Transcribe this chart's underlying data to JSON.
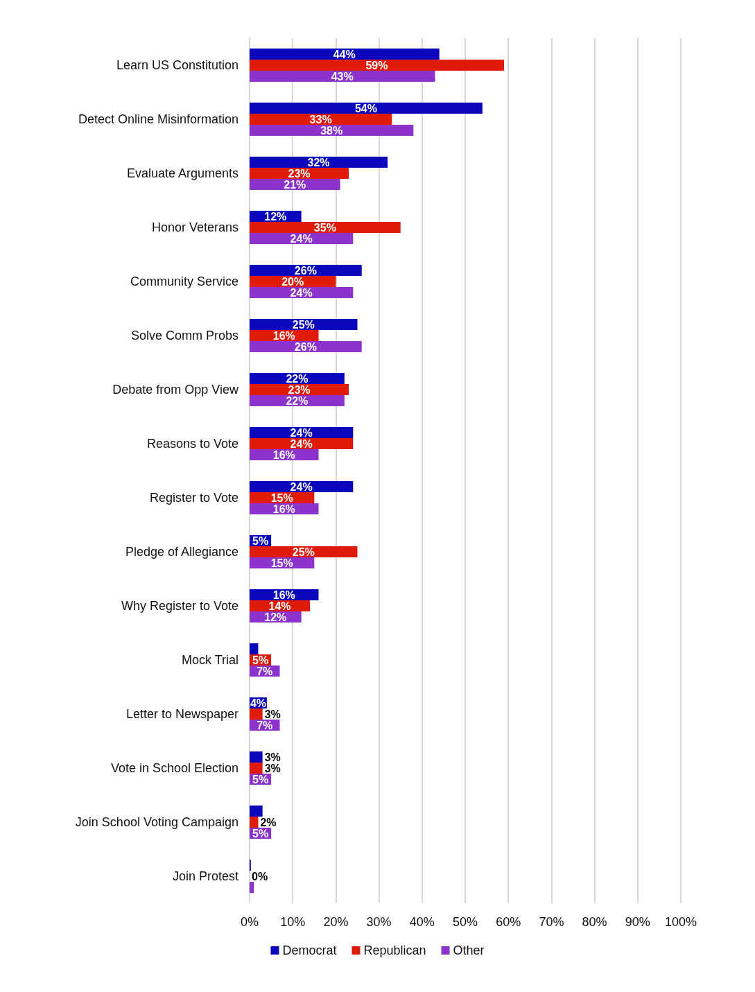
{
  "chart_data": {
    "type": "bar",
    "orientation": "horizontal",
    "categories": [
      "Learn US Constitution",
      "Detect Online Misinformation",
      "Evaluate Arguments",
      "Honor Veterans",
      "Community Service",
      "Solve Comm Probs",
      "Debate from Opp View",
      "Reasons to Vote",
      "Register to Vote",
      "Pledge of Allegiance",
      "Why Register to Vote",
      "Mock Trial",
      "Letter to Newspaper",
      "Vote in School Election",
      "Join School Voting Campaign",
      "Join Protest"
    ],
    "series": [
      {
        "name": "Democrat",
        "color": "#0c06bd",
        "values": [
          44,
          54,
          32,
          12,
          26,
          25,
          22,
          24,
          24,
          5,
          16,
          2,
          4,
          3,
          3,
          0.3
        ],
        "value_labels": [
          "44%",
          "54%",
          "32%",
          "12%",
          "26%",
          "25%",
          "22%",
          "24%",
          "24%",
          "5%",
          "16%",
          null,
          "4%",
          "3%",
          null,
          null
        ]
      },
      {
        "name": "Republican",
        "color": "#e01b0a",
        "values": [
          59,
          33,
          23,
          35,
          20,
          16,
          23,
          24,
          15,
          25,
          14,
          5,
          3,
          3,
          2,
          0
        ],
        "value_labels": [
          "59%",
          "33%",
          "23%",
          "35%",
          "20%",
          "16%",
          "23%",
          "24%",
          "15%",
          "25%",
          "14%",
          "5%",
          "3%",
          "3%",
          "2%",
          "0%"
        ]
      },
      {
        "name": "Other",
        "color": "#8b33cc",
        "values": [
          43,
          38,
          21,
          24,
          24,
          26,
          22,
          16,
          16,
          15,
          12,
          7,
          7,
          5,
          5,
          1
        ],
        "value_labels": [
          "43%",
          "38%",
          "21%",
          "24%",
          "24%",
          "26%",
          "22%",
          "16%",
          "16%",
          "15%",
          "12%",
          "7%",
          "7%",
          "5%",
          "5%",
          null
        ]
      }
    ],
    "xlim": [
      0,
      100
    ],
    "xticks": [
      {
        "value": 0,
        "label": "0%"
      },
      {
        "value": 10,
        "label": "10%"
      },
      {
        "value": 20,
        "label": "20%"
      },
      {
        "value": 30,
        "label": "30%"
      },
      {
        "value": 40,
        "label": "40%"
      },
      {
        "value": 50,
        "label": "50%"
      },
      {
        "value": 60,
        "label": "60%"
      },
      {
        "value": 70,
        "label": "70%"
      },
      {
        "value": 80,
        "label": "80%"
      },
      {
        "value": 90,
        "label": "90%"
      },
      {
        "value": 100,
        "label": "100%"
      }
    ],
    "grid": "x",
    "legend": "bottom"
  }
}
